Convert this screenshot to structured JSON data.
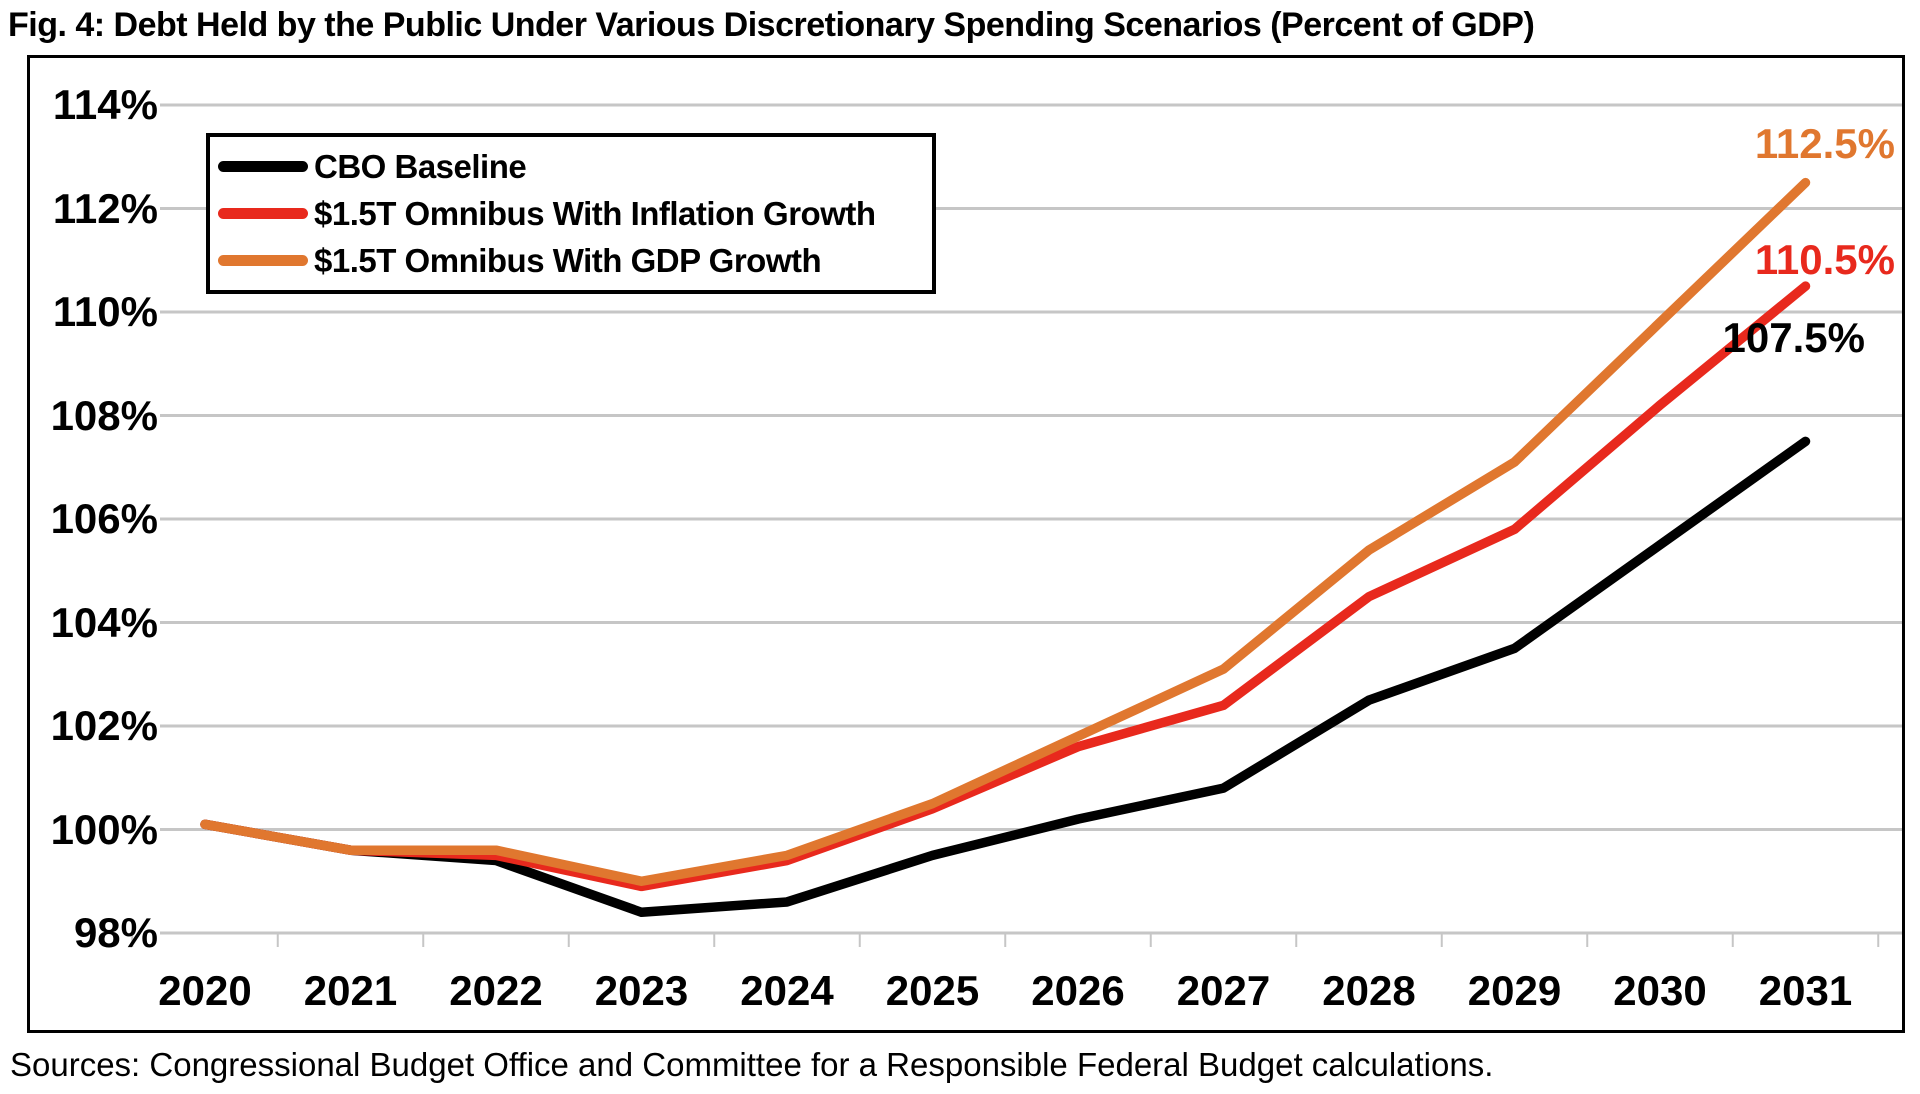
{
  "title": "Fig. 4: Debt Held by the Public Under Various Discretionary Spending Scenarios (Percent of GDP)",
  "sources": "Sources: Congressional Budget Office and Committee for a Responsible Federal Budget calculations.",
  "colors": {
    "baseline": "#000000",
    "inflation_growth": "#E8291D",
    "gdp_growth": "#E0772F",
    "gridline": "#C6C6C6",
    "border": "#000000"
  },
  "chart_data": {
    "type": "line",
    "title": "Fig. 4: Debt Held by the Public Under Various Discretionary Spending Scenarios (Percent of GDP)",
    "xlabel": "",
    "ylabel": "",
    "categories": [
      "2020",
      "2021",
      "2022",
      "2023",
      "2024",
      "2025",
      "2026",
      "2027",
      "2028",
      "2029",
      "2030",
      "2031"
    ],
    "ylim": [
      98,
      114
    ],
    "grid": "horizontal",
    "legend_position": "top-left",
    "y_ticks": [
      {
        "value": 114,
        "label": "114%"
      },
      {
        "value": 112,
        "label": "112%"
      },
      {
        "value": 110,
        "label": "110%"
      },
      {
        "value": 108,
        "label": "108%"
      },
      {
        "value": 106,
        "label": "106%"
      },
      {
        "value": 104,
        "label": "104%"
      },
      {
        "value": 102,
        "label": "102%"
      },
      {
        "value": 100,
        "label": "100%"
      },
      {
        "value": 98,
        "label": "98%"
      }
    ],
    "series": [
      {
        "name": "CBO Baseline",
        "color": "#000000",
        "end_label": "107.5%",
        "values": [
          100.1,
          99.6,
          99.4,
          98.4,
          98.6,
          99.5,
          100.2,
          100.8,
          102.5,
          103.5,
          105.5,
          107.5
        ]
      },
      {
        "name": "$1.5T Omnibus With Inflation Growth",
        "color": "#E8291D",
        "end_label": "110.5%",
        "values": [
          100.1,
          99.6,
          99.5,
          98.9,
          99.4,
          100.4,
          101.6,
          102.4,
          104.5,
          105.8,
          108.2,
          110.5
        ]
      },
      {
        "name": "$1.5T Omnibus With GDP Growth",
        "color": "#E0772F",
        "end_label": "112.5%",
        "values": [
          100.1,
          99.6,
          99.6,
          99.0,
          99.5,
          100.5,
          101.8,
          103.1,
          105.4,
          107.1,
          109.8,
          112.5
        ]
      }
    ]
  }
}
